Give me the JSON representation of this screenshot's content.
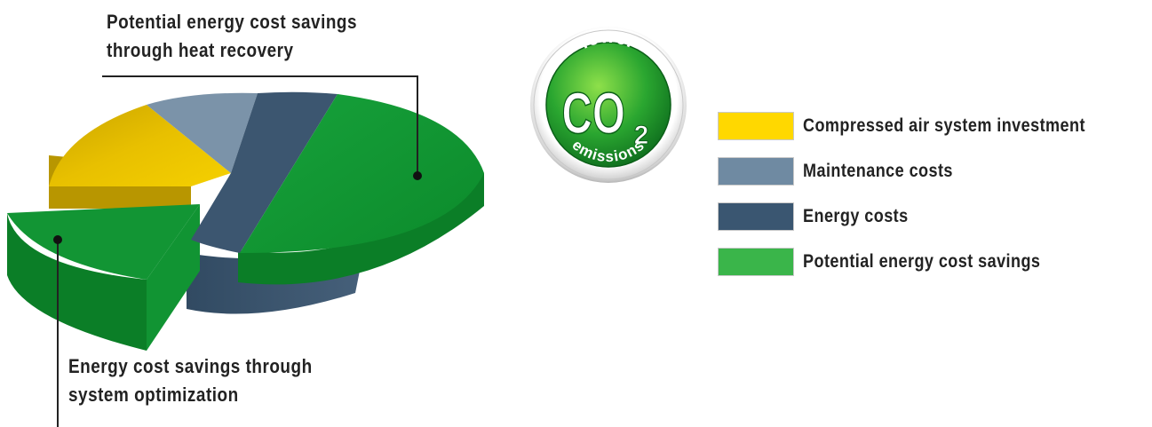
{
  "chart_data": {
    "type": "pie",
    "categories": [
      "Compressed air system investment",
      "Maintenance costs",
      "Energy costs",
      "Potential energy cost savings"
    ],
    "values": [
      16,
      7,
      7,
      70
    ],
    "exploded_slices": [
      {
        "label": "Energy cost savings through system optimization",
        "value": 20
      }
    ],
    "colors": [
      "#e3b800",
      "#7b93a9",
      "#3c5670",
      "#129534"
    ],
    "title": "",
    "legend_position": "right"
  },
  "callouts": {
    "heat_recovery_line1": "Potential energy cost savings",
    "heat_recovery_line2": "through heat recovery",
    "optimization_line1": "Energy cost savings through",
    "optimization_line2": "system optimization"
  },
  "badge": {
    "top_text": "lower",
    "main_text": "CO",
    "subscript": "2",
    "bottom_text": "emissions"
  },
  "legend": {
    "items": [
      {
        "label": "Compressed air system investment",
        "color": "#ffd800"
      },
      {
        "label": "Maintenance costs",
        "color": "#6f8aa2"
      },
      {
        "label": "Energy costs",
        "color": "#3a5671"
      },
      {
        "label": "Potential energy cost savings",
        "color": "#3ab54a"
      }
    ]
  }
}
